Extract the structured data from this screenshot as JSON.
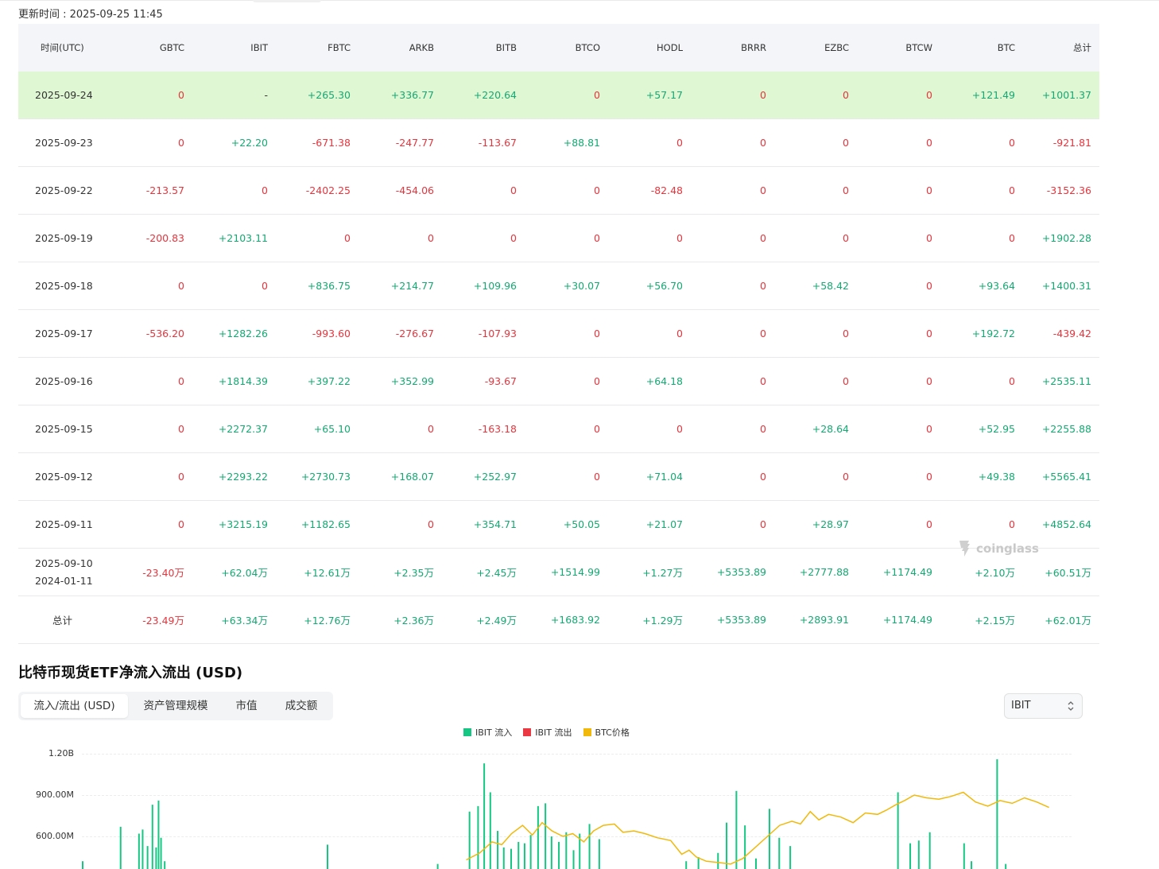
{
  "updated_label": "更新时间 : 2025-09-25 11:45",
  "table": {
    "headers": [
      "时间(UTC)",
      "GBTC",
      "IBIT",
      "FBTC",
      "ARKB",
      "BITB",
      "BTCO",
      "HODL",
      "BRRR",
      "EZBC",
      "BTCW",
      "BTC",
      "总计"
    ],
    "rows": [
      {
        "cells": [
          "2025-09-24",
          "0",
          "-",
          "+265.30",
          "+336.77",
          "+220.64",
          "0",
          "+57.17",
          "0",
          "0",
          "0",
          "+121.49",
          "+1001.37"
        ],
        "highlight": true
      },
      {
        "cells": [
          "2025-09-23",
          "0",
          "+22.20",
          "-671.38",
          "-247.77",
          "-113.67",
          "+88.81",
          "0",
          "0",
          "0",
          "0",
          "0",
          "-921.81"
        ]
      },
      {
        "cells": [
          "2025-09-22",
          "-213.57",
          "0",
          "-2402.25",
          "-454.06",
          "0",
          "0",
          "-82.48",
          "0",
          "0",
          "0",
          "0",
          "-3152.36"
        ]
      },
      {
        "cells": [
          "2025-09-19",
          "-200.83",
          "+2103.11",
          "0",
          "0",
          "0",
          "0",
          "0",
          "0",
          "0",
          "0",
          "0",
          "+1902.28"
        ]
      },
      {
        "cells": [
          "2025-09-18",
          "0",
          "0",
          "+836.75",
          "+214.77",
          "+109.96",
          "+30.07",
          "+56.70",
          "0",
          "+58.42",
          "0",
          "+93.64",
          "+1400.31"
        ]
      },
      {
        "cells": [
          "2025-09-17",
          "-536.20",
          "+1282.26",
          "-993.60",
          "-276.67",
          "-107.93",
          "0",
          "0",
          "0",
          "0",
          "0",
          "+192.72",
          "-439.42"
        ]
      },
      {
        "cells": [
          "2025-09-16",
          "0",
          "+1814.39",
          "+397.22",
          "+352.99",
          "-93.67",
          "0",
          "+64.18",
          "0",
          "0",
          "0",
          "0",
          "+2535.11"
        ]
      },
      {
        "cells": [
          "2025-09-15",
          "0",
          "+2272.37",
          "+65.10",
          "0",
          "-163.18",
          "0",
          "0",
          "0",
          "+28.64",
          "0",
          "+52.95",
          "+2255.88"
        ]
      },
      {
        "cells": [
          "2025-09-12",
          "0",
          "+2293.22",
          "+2730.73",
          "+168.07",
          "+252.97",
          "0",
          "+71.04",
          "0",
          "0",
          "0",
          "+49.38",
          "+5565.41"
        ]
      },
      {
        "cells": [
          "2025-09-11",
          "0",
          "+3215.19",
          "+1182.65",
          "0",
          "+354.71",
          "+50.05",
          "+21.07",
          "0",
          "+28.97",
          "0",
          "0",
          "+4852.64"
        ]
      },
      {
        "cells": [
          "2025-09-10",
          "-23.40万",
          "+62.04万",
          "+12.61万",
          "+2.35万",
          "+2.45万",
          "+1514.99",
          "+1.27万",
          "+5353.89",
          "+2777.88",
          "+1174.49",
          "+2.10万",
          "+60.51万"
        ],
        "date2": "2024-01-11"
      },
      {
        "cells": [
          "总计",
          "-23.49万",
          "+63.34万",
          "+12.76万",
          "+2.36万",
          "+2.49万",
          "+1683.92",
          "+1.29万",
          "+5353.89",
          "+2893.91",
          "+1174.49",
          "+2.15万",
          "+62.01万"
        ],
        "total": true
      }
    ]
  },
  "watermark": "coinglass",
  "chart_section": {
    "title": "比特币现货ETF净流入流出 (USD)",
    "tabs": [
      "流入/流出 (USD)",
      "资产管理规模",
      "市值",
      "成交额"
    ],
    "active_tab": 0,
    "select_value": "IBIT",
    "legend": [
      {
        "label": "IBIT 流入",
        "color": "#16c784"
      },
      {
        "label": "IBIT 流出",
        "color": "#ea3943"
      },
      {
        "label": "BTC价格",
        "color": "#f0b90b"
      }
    ],
    "colors": {
      "positive": "#16a874",
      "negative": "#e5353d"
    }
  },
  "chart_data": {
    "type": "bar",
    "yticks": [
      "1.20B",
      "900.00M",
      "600.00M"
    ],
    "ytick_values": [
      1200000000,
      900000000,
      600000000
    ],
    "series": [
      {
        "name": "IBIT 流入",
        "color": "#16c784",
        "points": [
          [
            0.0,
            420000000
          ],
          [
            3.1,
            670000000
          ],
          [
            4.6,
            620000000
          ],
          [
            4.9,
            650000000
          ],
          [
            5.3,
            530000000
          ],
          [
            5.7,
            830000000
          ],
          [
            6.0,
            520000000
          ],
          [
            6.2,
            860000000
          ],
          [
            6.4,
            590000000
          ],
          [
            6.7,
            420000000
          ],
          [
            20.0,
            540000000
          ],
          [
            29.0,
            400000000
          ],
          [
            31.6,
            780000000
          ],
          [
            32.3,
            820000000
          ],
          [
            32.8,
            1130000000
          ],
          [
            33.3,
            920000000
          ],
          [
            33.9,
            640000000
          ],
          [
            34.4,
            520000000
          ],
          [
            35.0,
            510000000
          ],
          [
            35.6,
            560000000
          ],
          [
            36.1,
            550000000
          ],
          [
            36.6,
            610000000
          ],
          [
            37.2,
            820000000
          ],
          [
            37.8,
            840000000
          ],
          [
            38.3,
            600000000
          ],
          [
            38.9,
            560000000
          ],
          [
            39.5,
            630000000
          ],
          [
            40.1,
            500000000
          ],
          [
            40.6,
            620000000
          ],
          [
            41.4,
            690000000
          ],
          [
            42.2,
            580000000
          ],
          [
            49.3,
            420000000
          ],
          [
            50.3,
            450000000
          ],
          [
            51.9,
            480000000
          ],
          [
            52.6,
            700000000
          ],
          [
            53.4,
            930000000
          ],
          [
            54.1,
            680000000
          ],
          [
            55.0,
            440000000
          ],
          [
            56.1,
            800000000
          ],
          [
            56.9,
            590000000
          ],
          [
            57.8,
            530000000
          ],
          [
            66.6,
            920000000
          ],
          [
            67.6,
            550000000
          ],
          [
            68.3,
            570000000
          ],
          [
            69.2,
            630000000
          ],
          [
            72.0,
            550000000
          ],
          [
            72.6,
            420000000
          ],
          [
            74.7,
            1160000000
          ],
          [
            75.4,
            400000000
          ]
        ]
      },
      {
        "name": "BTC价格",
        "color": "#f0b90b",
        "x": [
          31.4,
          32.5,
          33.5,
          34.3,
          35.1,
          36.0,
          36.8,
          37.6,
          38.4,
          39.3,
          40.1,
          41.0,
          41.8,
          42.6,
          43.5,
          44.2,
          45.1,
          46.0,
          47.0,
          48.1,
          49.0,
          49.6,
          50.2,
          51.0,
          52.0,
          53.0,
          54.0,
          55.0,
          56.0,
          57.0,
          58.0,
          58.7,
          59.5,
          60.2,
          61.0,
          62.0,
          63.0,
          64.0,
          65.0,
          65.7,
          66.5,
          67.2,
          68.0,
          69.0,
          70.0,
          71.0,
          72.0,
          73.0,
          74.0,
          75.0,
          76.0,
          77.0,
          78.0,
          79.0
        ],
        "values": [
          430000000,
          480000000,
          560000000,
          540000000,
          620000000,
          680000000,
          610000000,
          700000000,
          640000000,
          600000000,
          620000000,
          560000000,
          640000000,
          680000000,
          690000000,
          630000000,
          640000000,
          620000000,
          590000000,
          570000000,
          470000000,
          500000000,
          450000000,
          420000000,
          410000000,
          400000000,
          440000000,
          520000000,
          600000000,
          680000000,
          710000000,
          690000000,
          780000000,
          720000000,
          760000000,
          740000000,
          700000000,
          770000000,
          760000000,
          790000000,
          830000000,
          860000000,
          900000000,
          880000000,
          870000000,
          890000000,
          920000000,
          850000000,
          820000000,
          860000000,
          840000000,
          880000000,
          850000000,
          810000000
        ]
      }
    ]
  }
}
